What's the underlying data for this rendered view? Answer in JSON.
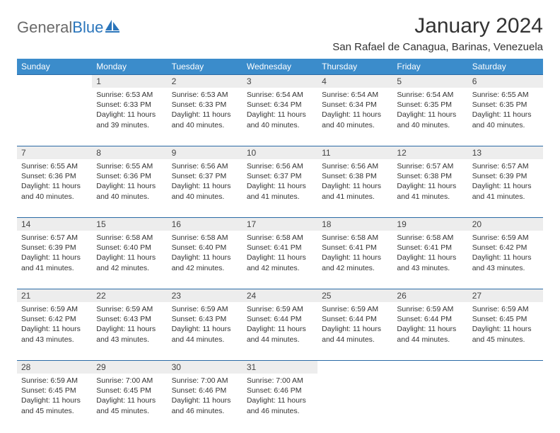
{
  "brand": {
    "general": "General",
    "blue": "Blue"
  },
  "title": "January 2024",
  "location": "San Rafael de Canagua, Barinas, Venezuela",
  "colors": {
    "header_bg": "#3b8ccb",
    "header_text": "#ffffff",
    "daynum_bg": "#ededed",
    "row_border": "#2a6aa5",
    "logo_blue": "#2a75bb",
    "logo_gray": "#6a6a6a",
    "text": "#333333",
    "background": "#ffffff"
  },
  "layout": {
    "columns": 7,
    "rows": 5,
    "cell_fontsize": 10.5,
    "header_fontsize": 12,
    "title_fontsize": 30,
    "location_fontsize": 15
  },
  "day_headers": [
    "Sunday",
    "Monday",
    "Tuesday",
    "Wednesday",
    "Thursday",
    "Friday",
    "Saturday"
  ],
  "weeks": [
    [
      null,
      {
        "n": "1",
        "sr": "6:53 AM",
        "ss": "6:33 PM",
        "dl": "11 hours and 39 minutes."
      },
      {
        "n": "2",
        "sr": "6:53 AM",
        "ss": "6:33 PM",
        "dl": "11 hours and 40 minutes."
      },
      {
        "n": "3",
        "sr": "6:54 AM",
        "ss": "6:34 PM",
        "dl": "11 hours and 40 minutes."
      },
      {
        "n": "4",
        "sr": "6:54 AM",
        "ss": "6:34 PM",
        "dl": "11 hours and 40 minutes."
      },
      {
        "n": "5",
        "sr": "6:54 AM",
        "ss": "6:35 PM",
        "dl": "11 hours and 40 minutes."
      },
      {
        "n": "6",
        "sr": "6:55 AM",
        "ss": "6:35 PM",
        "dl": "11 hours and 40 minutes."
      }
    ],
    [
      {
        "n": "7",
        "sr": "6:55 AM",
        "ss": "6:36 PM",
        "dl": "11 hours and 40 minutes."
      },
      {
        "n": "8",
        "sr": "6:55 AM",
        "ss": "6:36 PM",
        "dl": "11 hours and 40 minutes."
      },
      {
        "n": "9",
        "sr": "6:56 AM",
        "ss": "6:37 PM",
        "dl": "11 hours and 40 minutes."
      },
      {
        "n": "10",
        "sr": "6:56 AM",
        "ss": "6:37 PM",
        "dl": "11 hours and 41 minutes."
      },
      {
        "n": "11",
        "sr": "6:56 AM",
        "ss": "6:38 PM",
        "dl": "11 hours and 41 minutes."
      },
      {
        "n": "12",
        "sr": "6:57 AM",
        "ss": "6:38 PM",
        "dl": "11 hours and 41 minutes."
      },
      {
        "n": "13",
        "sr": "6:57 AM",
        "ss": "6:39 PM",
        "dl": "11 hours and 41 minutes."
      }
    ],
    [
      {
        "n": "14",
        "sr": "6:57 AM",
        "ss": "6:39 PM",
        "dl": "11 hours and 41 minutes."
      },
      {
        "n": "15",
        "sr": "6:58 AM",
        "ss": "6:40 PM",
        "dl": "11 hours and 42 minutes."
      },
      {
        "n": "16",
        "sr": "6:58 AM",
        "ss": "6:40 PM",
        "dl": "11 hours and 42 minutes."
      },
      {
        "n": "17",
        "sr": "6:58 AM",
        "ss": "6:41 PM",
        "dl": "11 hours and 42 minutes."
      },
      {
        "n": "18",
        "sr": "6:58 AM",
        "ss": "6:41 PM",
        "dl": "11 hours and 42 minutes."
      },
      {
        "n": "19",
        "sr": "6:58 AM",
        "ss": "6:41 PM",
        "dl": "11 hours and 43 minutes."
      },
      {
        "n": "20",
        "sr": "6:59 AM",
        "ss": "6:42 PM",
        "dl": "11 hours and 43 minutes."
      }
    ],
    [
      {
        "n": "21",
        "sr": "6:59 AM",
        "ss": "6:42 PM",
        "dl": "11 hours and 43 minutes."
      },
      {
        "n": "22",
        "sr": "6:59 AM",
        "ss": "6:43 PM",
        "dl": "11 hours and 43 minutes."
      },
      {
        "n": "23",
        "sr": "6:59 AM",
        "ss": "6:43 PM",
        "dl": "11 hours and 44 minutes."
      },
      {
        "n": "24",
        "sr": "6:59 AM",
        "ss": "6:44 PM",
        "dl": "11 hours and 44 minutes."
      },
      {
        "n": "25",
        "sr": "6:59 AM",
        "ss": "6:44 PM",
        "dl": "11 hours and 44 minutes."
      },
      {
        "n": "26",
        "sr": "6:59 AM",
        "ss": "6:44 PM",
        "dl": "11 hours and 44 minutes."
      },
      {
        "n": "27",
        "sr": "6:59 AM",
        "ss": "6:45 PM",
        "dl": "11 hours and 45 minutes."
      }
    ],
    [
      {
        "n": "28",
        "sr": "6:59 AM",
        "ss": "6:45 PM",
        "dl": "11 hours and 45 minutes."
      },
      {
        "n": "29",
        "sr": "7:00 AM",
        "ss": "6:45 PM",
        "dl": "11 hours and 45 minutes."
      },
      {
        "n": "30",
        "sr": "7:00 AM",
        "ss": "6:46 PM",
        "dl": "11 hours and 46 minutes."
      },
      {
        "n": "31",
        "sr": "7:00 AM",
        "ss": "6:46 PM",
        "dl": "11 hours and 46 minutes."
      },
      null,
      null,
      null
    ]
  ],
  "labels": {
    "sunrise": "Sunrise:",
    "sunset": "Sunset:",
    "daylight": "Daylight:"
  }
}
